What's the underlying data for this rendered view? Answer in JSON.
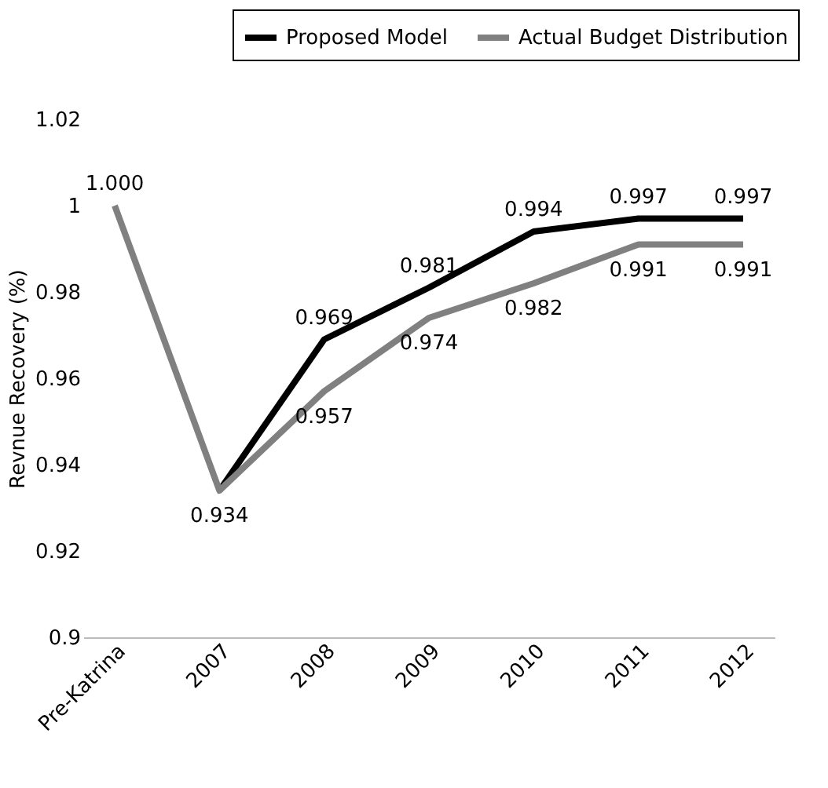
{
  "chart_data": {
    "type": "line",
    "ylabel": "Revnue Recovery (%)",
    "categories": [
      "Pre-Katrina",
      "2007",
      "2008",
      "2009",
      "2010",
      "2011",
      "2012"
    ],
    "series": [
      {
        "name": "Proposed Model",
        "color": "#000000",
        "values": [
          null,
          0.934,
          0.969,
          0.981,
          0.994,
          0.997,
          0.997
        ],
        "value_labels": [
          null,
          null,
          "0.969",
          "0.981",
          "0.994",
          "0.997",
          "0.997"
        ]
      },
      {
        "name": "Actual Budget Distribution",
        "color": "#808080",
        "values": [
          1.0,
          0.934,
          0.957,
          0.974,
          0.982,
          0.991,
          0.991
        ],
        "value_labels": [
          "1.000",
          "0.934",
          "0.957",
          "0.974",
          "0.982",
          "0.991",
          "0.991"
        ]
      }
    ],
    "ylim": [
      0.9,
      1.02
    ],
    "yticks": [
      0.9,
      0.92,
      0.94,
      0.96,
      0.98,
      {
        "value": 1.0,
        "label": "1"
      },
      1.02
    ],
    "grid": false,
    "legend": "top right",
    "marker": "none",
    "line_style": "solid"
  }
}
